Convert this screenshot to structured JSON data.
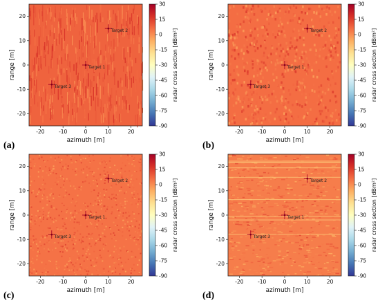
{
  "chart_data": [
    {
      "type": "heatmap",
      "panel_label": "(a)",
      "xlabel": "azimuth [m]",
      "ylabel": "range [m]",
      "colorbar_label": "radar cross section [dBm²]",
      "xlim": [
        -25,
        25
      ],
      "ylim": [
        -25,
        25
      ],
      "xticks": [
        -20,
        -10,
        0,
        10,
        20
      ],
      "yticks": [
        -20,
        -10,
        0,
        10,
        20
      ],
      "clim": [
        -90,
        30
      ],
      "colorbar_ticks": [
        30,
        15,
        0,
        -15,
        -30,
        -45,
        -60,
        -75,
        -90
      ],
      "texture": "vertical-streaks",
      "background_level_dbm2": 8,
      "targets": [
        {
          "label": "Target 2",
          "x": 10,
          "y": 15
        },
        {
          "label": "Target 1",
          "x": 0,
          "y": 0
        },
        {
          "label": "Target 3",
          "x": -15,
          "y": -8
        }
      ]
    },
    {
      "type": "heatmap",
      "panel_label": "(b)",
      "xlabel": "azimuth [m]",
      "ylabel": "range [m]",
      "colorbar_label": "radar cross section [dBm²]",
      "xlim": [
        -25,
        25
      ],
      "ylim": [
        -25,
        25
      ],
      "xticks": [
        -20,
        -10,
        0,
        10,
        20
      ],
      "yticks": [
        -20,
        -10,
        0,
        10,
        20
      ],
      "clim": [
        -90,
        30
      ],
      "colorbar_ticks": [
        30,
        15,
        0,
        -15,
        -30,
        -45,
        -60,
        -75,
        -90
      ],
      "texture": "speckle-elongated",
      "background_level_dbm2": 6,
      "targets": [
        {
          "label": "Target 2",
          "x": 10,
          "y": 15
        },
        {
          "label": "Target 1",
          "x": 0,
          "y": 0
        },
        {
          "label": "Target 3",
          "x": -15,
          "y": -8
        }
      ]
    },
    {
      "type": "heatmap",
      "panel_label": "(c)",
      "xlabel": "azimuth [m]",
      "ylabel": "range [m]",
      "colorbar_label": "radar cross section [dBm²]",
      "xlim": [
        -25,
        25
      ],
      "ylim": [
        -25,
        25
      ],
      "xticks": [
        -20,
        -10,
        0,
        10,
        20
      ],
      "yticks": [
        -20,
        -10,
        0,
        10,
        20
      ],
      "clim": [
        -90,
        30
      ],
      "colorbar_ticks": [
        30,
        15,
        0,
        -15,
        -30,
        -45,
        -60,
        -75,
        -90
      ],
      "texture": "speckle-fine",
      "background_level_dbm2": 5,
      "targets": [
        {
          "label": "Target 2",
          "x": 10,
          "y": 15
        },
        {
          "label": "Target 1",
          "x": 0,
          "y": 0
        },
        {
          "label": "Target 3",
          "x": -15,
          "y": -8
        }
      ]
    },
    {
      "type": "heatmap",
      "panel_label": "(d)",
      "xlabel": "azimuth [m]",
      "ylabel": "range [m]",
      "colorbar_label": "radar cross section [dBm²]",
      "xlim": [
        -25,
        25
      ],
      "ylim": [
        -25,
        25
      ],
      "xticks": [
        -20,
        -10,
        0,
        10,
        20
      ],
      "yticks": [
        -20,
        -10,
        0,
        10,
        20
      ],
      "clim": [
        -90,
        30
      ],
      "colorbar_ticks": [
        30,
        15,
        0,
        -15,
        -30,
        -45,
        -60,
        -75,
        -90
      ],
      "texture": "horizontal-streaks",
      "background_level_dbm2": 3,
      "targets": [
        {
          "label": "Target 2",
          "x": 10,
          "y": 15
        },
        {
          "label": "Target 1",
          "x": 0,
          "y": 0
        },
        {
          "label": "Target 3",
          "x": -15,
          "y": -8
        }
      ]
    }
  ],
  "colormap": "RdYlBu_r",
  "colormap_stops": [
    "#313695",
    "#4575b4",
    "#74add1",
    "#abd9e9",
    "#e0f3f8",
    "#ffffbf",
    "#fee090",
    "#fdae61",
    "#f46d43",
    "#d73027",
    "#a50026"
  ]
}
